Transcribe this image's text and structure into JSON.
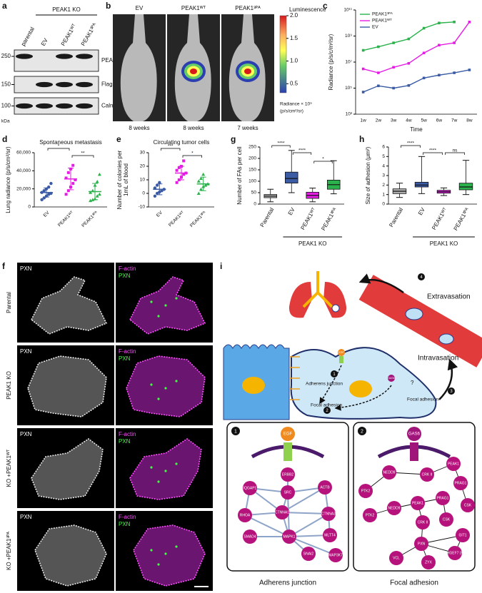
{
  "figure": {
    "a": {
      "letter": "a",
      "header": "PEAK1 KO",
      "lanes": [
        "parental",
        "EV",
        "PEAK1ᵂᵀ",
        "PEAK1³ᴾᴬ"
      ],
      "mw": [
        "250",
        "150",
        "100"
      ],
      "blots": [
        "PEAK1",
        "Flag-CAS9",
        "Calnexin"
      ],
      "unit": "kDa"
    },
    "b": {
      "letter": "b",
      "groups": [
        "EV",
        "PEAK1ᵂᵀ",
        "PEAK1³ᴾᴬ"
      ],
      "times": [
        "8 weeks",
        "8 weeks",
        "7 weeks"
      ],
      "colorbar_title": "Luminescence",
      "clim": [
        0.3,
        2.0
      ],
      "colorbar_ticks": [
        {
          "value": 2.0,
          "label": "2.0"
        },
        {
          "value": 1.5,
          "label": "1.5"
        },
        {
          "value": 1.0,
          "label": "1.0"
        },
        {
          "value": 0.5,
          "label": "0.5"
        }
      ],
      "unit_lines": [
        "Radiance × 10⁹",
        "(p/s/cm²/sr)"
      ]
    },
    "f": {
      "letter": "f",
      "rows": [
        "Parental",
        "PEAK1 KO",
        "KO +PEAK1ᵂᵀ",
        "KO +PEAK1³ᴾᴬ"
      ],
      "channel_left": "PXN",
      "channel_right": [
        "F-actin",
        "PXN"
      ]
    },
    "i": {
      "letter": "i",
      "extravasation": "Extravasation",
      "intravasation": "Intravasation",
      "adherens": "Adherens junction",
      "focal": "Focal adhesion",
      "focal2": "Focal adhesion",
      "egf": "EGF",
      "gas6": "GAS6",
      "question": "?",
      "steps": [
        "1",
        "2",
        "3",
        "4"
      ],
      "box1": {
        "step": "1",
        "ligand": "EGF",
        "caption": "Adherens junction",
        "nodes": [
          "ERBB2",
          "IQGAP1",
          "SRC",
          "ACTB",
          "RHOA",
          "CTNNA1",
          "CTNNA3",
          "SMAD4",
          "MAPK1",
          "MLTT4",
          "SNAI2",
          "MAP3K7"
        ]
      },
      "box2": {
        "step": "2",
        "ligand": "GAS6",
        "caption": "Focal adhesion",
        "nodes": [
          "PEAK1",
          "NEDD9",
          "CRK II",
          "PRAG1",
          "PTK2",
          "CSK",
          "PTK2",
          "NEDD9",
          "PEAK1",
          "PRAG1",
          "CRK II",
          "CSK",
          "GIT1",
          "ARHGEF7 (PIX)",
          "PXN",
          "VCL",
          "ZYX"
        ]
      }
    }
  },
  "chart_data": [
    {
      "type": "line",
      "letter": "c",
      "log_scale": true,
      "xlabel": "Time",
      "ylabel": "Radiance (p/s/c/m²/sr)",
      "legend": "upper left",
      "categories": [
        "1w",
        "2w",
        "3w",
        "4w",
        "5w",
        "6w",
        "7w",
        "8w"
      ],
      "ylim": [
        1000,
        100000000000
      ],
      "yticks": [
        {
          "value": 1000,
          "label": "10³"
        },
        {
          "value": 100000,
          "label": "10⁵"
        },
        {
          "value": 10000000,
          "label": "10⁷"
        },
        {
          "value": 1000000000,
          "label": "10⁹"
        },
        {
          "value": 100000000000,
          "label": "10¹¹"
        }
      ],
      "series": [
        {
          "name": "PEAK1³ᴾᴬ",
          "color": "#2bb24c",
          "values": [
            80000000,
            150000000,
            300000000,
            600000000,
            4000000000,
            10000000000,
            12000000000,
            null
          ]
        },
        {
          "name": "PEAK1ᵂᵀ",
          "color": "#e41de4",
          "values": [
            3000000,
            1500000,
            4000000,
            8000000,
            50000000,
            200000000,
            300000000,
            12000000000
          ]
        },
        {
          "name": "EV",
          "color": "#3b5ba5",
          "values": [
            50000,
            150000,
            100000,
            160000,
            600000,
            1000000,
            1500000,
            2500000
          ]
        }
      ]
    },
    {
      "type": "dot",
      "letter": "d",
      "title": "Spontaneous metastasis",
      "ylabel": [
        "Lung radiance (p/s/cm²/sr)"
      ],
      "categories": [
        "EV",
        "PEAK1ᵂᵀ",
        "PEAK1³ᴾᴬ"
      ],
      "colors": [
        "#3b5ba5",
        "#e41de4",
        "#2bb24c"
      ],
      "markers": [
        "circle",
        "square",
        "triangle"
      ],
      "ylim": [
        0,
        60000
      ],
      "yticks": [
        0,
        {
          "value": 20000,
          "label": "20,000"
        },
        {
          "value": 40000,
          "label": "40,000"
        },
        {
          "value": 60000,
          "label": "60,000"
        }
      ],
      "points": [
        [
          8000,
          10000,
          12000,
          14000,
          15000,
          16000,
          18000,
          20000,
          22000,
          26000
        ],
        [
          14000,
          18000,
          22000,
          26000,
          30000,
          32000,
          38000,
          42000,
          46000
        ],
        [
          7000,
          8000,
          9000,
          12000,
          14000,
          16000,
          18000,
          24000,
          28000,
          36000
        ]
      ],
      "means": [
        16000,
        31000,
        17000
      ],
      "errors": [
        5000,
        12000,
        9000
      ],
      "annotations": [
        "*",
        "**"
      ]
    },
    {
      "type": "dot",
      "letter": "e",
      "title": "Circulating tumor cells",
      "ylabel": [
        "Number of colonies per",
        "1mL of blood"
      ],
      "categories": [
        "EV",
        "PEAK1ᵂᵀ",
        "PEAK1³ᴾᴬ"
      ],
      "colors": [
        "#3b5ba5",
        "#e41de4",
        "#2bb24c"
      ],
      "markers": [
        "circle",
        "square",
        "triangle"
      ],
      "ylim": [
        -10,
        30
      ],
      "yticks": [
        -10,
        0,
        10,
        20,
        30
      ],
      "points": [
        [
          -2,
          0,
          1,
          2,
          3,
          4,
          6,
          8
        ],
        [
          8,
          10,
          12,
          14,
          15,
          17,
          19,
          20,
          24
        ],
        [
          0,
          3,
          5,
          6,
          7,
          9,
          11,
          14
        ]
      ],
      "means": [
        3,
        15,
        7
      ],
      "errors": [
        4,
        5,
        5
      ],
      "annotations": [
        "***",
        "*"
      ]
    },
    {
      "type": "box",
      "letter": "g",
      "ylabel": [
        "Number of FAs per cell"
      ],
      "group_label": "PEAK1 KO",
      "categories": [
        "Parental",
        "EV",
        "PEAK1ᵂᵀ",
        "PEAK1³ᴾᴬ"
      ],
      "colors": [
        "#b0b0b0",
        "#3b5ba5",
        "#e41de4",
        "#2bb24c"
      ],
      "ylim": [
        0,
        250
      ],
      "yticks": [
        0,
        50,
        100,
        150,
        200,
        250
      ],
      "min": [
        10,
        50,
        10,
        45
      ],
      "q1": [
        28,
        92,
        25,
        65
      ],
      "median": [
        35,
        112,
        38,
        85
      ],
      "q3": [
        42,
        140,
        52,
        105
      ],
      "max": [
        65,
        235,
        70,
        190
      ],
      "annotations": [
        "****",
        "****",
        "*"
      ]
    },
    {
      "type": "box",
      "letter": "h",
      "ylabel": [
        "Size of adhesion (μm²)"
      ],
      "group_label": "PEAK1 KO",
      "categories": [
        "Parental",
        "EV",
        "PEAK1ᵂᵀ",
        "PEAK1³ᴾᴬ"
      ],
      "colors": [
        "#b0b0b0",
        "#3b5ba5",
        "#e41de4",
        "#2bb24c"
      ],
      "ylim": [
        0,
        6
      ],
      "yticks": [
        0,
        1,
        2,
        3,
        4,
        5,
        6
      ],
      "min": [
        0.7,
        1.1,
        0.9,
        1.0
      ],
      "q1": [
        1.1,
        1.8,
        1.15,
        1.5
      ],
      "median": [
        1.35,
        2.0,
        1.3,
        1.8
      ],
      "q3": [
        1.6,
        2.3,
        1.45,
        2.2
      ],
      "max": [
        2.2,
        5.0,
        1.7,
        4.6
      ],
      "annotations": [
        "****",
        "****",
        "ns"
      ]
    }
  ]
}
